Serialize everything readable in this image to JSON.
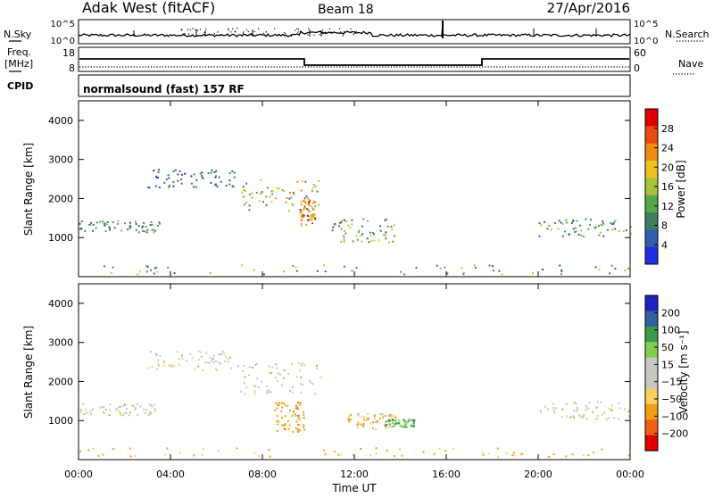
{
  "header": {
    "title": "Adak West (fitACF)",
    "beam": "Beam 18",
    "date": "27/Apr/2016"
  },
  "small_panels": {
    "nsky_label": "N.Sky",
    "nsky_ticks": [
      "10^5",
      "10^0"
    ],
    "nsearch_label": "N.Search",
    "nsearch_ticks": [
      "10^5",
      "10^0"
    ],
    "freq_label_1": "Freq.",
    "freq_label_2": "[MHz]",
    "freq_ticks": [
      "18",
      "8"
    ],
    "nave_label": "Nave",
    "nave_ticks": [
      "60",
      "0"
    ],
    "cpid_label": "CPID",
    "cpid_text": "normalsound (fast) 157 RF"
  },
  "colors": {
    "power": [
      "#1f2ee0",
      "#2f5fae",
      "#3f7f5f",
      "#55a84a",
      "#a6c23a",
      "#f0c020",
      "#f08a10",
      "#e84a10",
      "#e00000"
    ],
    "velocity": [
      "#e00000",
      "#f06010",
      "#f0a010",
      "#f8d060",
      "#c8c8c0",
      "#c8c8c0",
      "#80d050",
      "#3a9a4a",
      "#3060a0",
      "#2020c0"
    ],
    "ground": "#9a9a94"
  },
  "chart_data": [
    {
      "type": "heatmap",
      "name": "power",
      "xlabel": "",
      "ylabel": "Slant Range [km]",
      "ylim": [
        0,
        4500
      ],
      "y_ticks": [
        "4000",
        "3000",
        "2000",
        "1000"
      ],
      "x_ticks": [
        "00:00",
        "04:00",
        "08:00",
        "12:00",
        "16:00",
        "20:00",
        "00:00"
      ],
      "colorbar": {
        "label": "Power [dB]",
        "ticks": [
          "28",
          "24",
          "20",
          "16",
          "12",
          "8",
          "4"
        ],
        "range": [
          0,
          30
        ]
      },
      "scatter_regions": [
        {
          "t0": 0.0,
          "t1": 3.5,
          "r0": 1150,
          "r1": 1450,
          "p0": 4,
          "p1": 14
        },
        {
          "t0": 3.0,
          "t1": 7.0,
          "r0": 2300,
          "r1": 2800,
          "p0": 3,
          "p1": 10
        },
        {
          "t0": 7.0,
          "t1": 10.5,
          "r0": 1700,
          "r1": 2500,
          "p0": 6,
          "p1": 22
        },
        {
          "t0": 9.6,
          "t1": 10.3,
          "r0": 1300,
          "r1": 2000,
          "p0": 14,
          "p1": 28
        },
        {
          "t0": 11.0,
          "t1": 13.8,
          "r0": 900,
          "r1": 1500,
          "p0": 6,
          "p1": 18
        },
        {
          "t0": 20.0,
          "t1": 24.0,
          "r0": 1050,
          "r1": 1500,
          "p0": 4,
          "p1": 16
        },
        {
          "t0": 0.0,
          "t1": 24.0,
          "r0": 80,
          "r1": 320,
          "p0": 4,
          "p1": 20
        }
      ]
    },
    {
      "type": "heatmap",
      "name": "velocity",
      "xlabel": "Time UT",
      "ylabel": "Slant Range [km]",
      "ylim": [
        0,
        4500
      ],
      "y_ticks": [
        "4000",
        "3000",
        "2000",
        "1000"
      ],
      "x_ticks": [
        "00:00",
        "04:00",
        "08:00",
        "12:00",
        "16:00",
        "20:00",
        "00:00"
      ],
      "colorbar": {
        "label": "Velocity [m s⁻¹]",
        "ticks": [
          "200",
          "100",
          "50",
          "15",
          "−15",
          "−50",
          "−100",
          "−200"
        ]
      },
      "scatter_regions": [
        {
          "t0": 0.0,
          "t1": 3.5,
          "r0": 1150,
          "r1": 1450,
          "v": 0
        },
        {
          "t0": 3.0,
          "t1": 7.0,
          "r0": 2300,
          "r1": 2800,
          "v": 0
        },
        {
          "t0": 7.0,
          "t1": 10.5,
          "r0": 1700,
          "r1": 2500,
          "v": 0
        },
        {
          "t0": 8.5,
          "t1": 9.8,
          "r0": 700,
          "r1": 1500,
          "v": -60
        },
        {
          "t0": 11.5,
          "t1": 13.8,
          "r0": 800,
          "r1": 1200,
          "v": -30
        },
        {
          "t0": 13.3,
          "t1": 14.6,
          "r0": 850,
          "r1": 1050,
          "v": 30
        },
        {
          "t0": 20.0,
          "t1": 24.0,
          "r0": 1050,
          "r1": 1500,
          "v": 0
        },
        {
          "t0": 0.0,
          "t1": 24.0,
          "r0": 80,
          "r1": 320,
          "v": -40
        }
      ]
    }
  ]
}
